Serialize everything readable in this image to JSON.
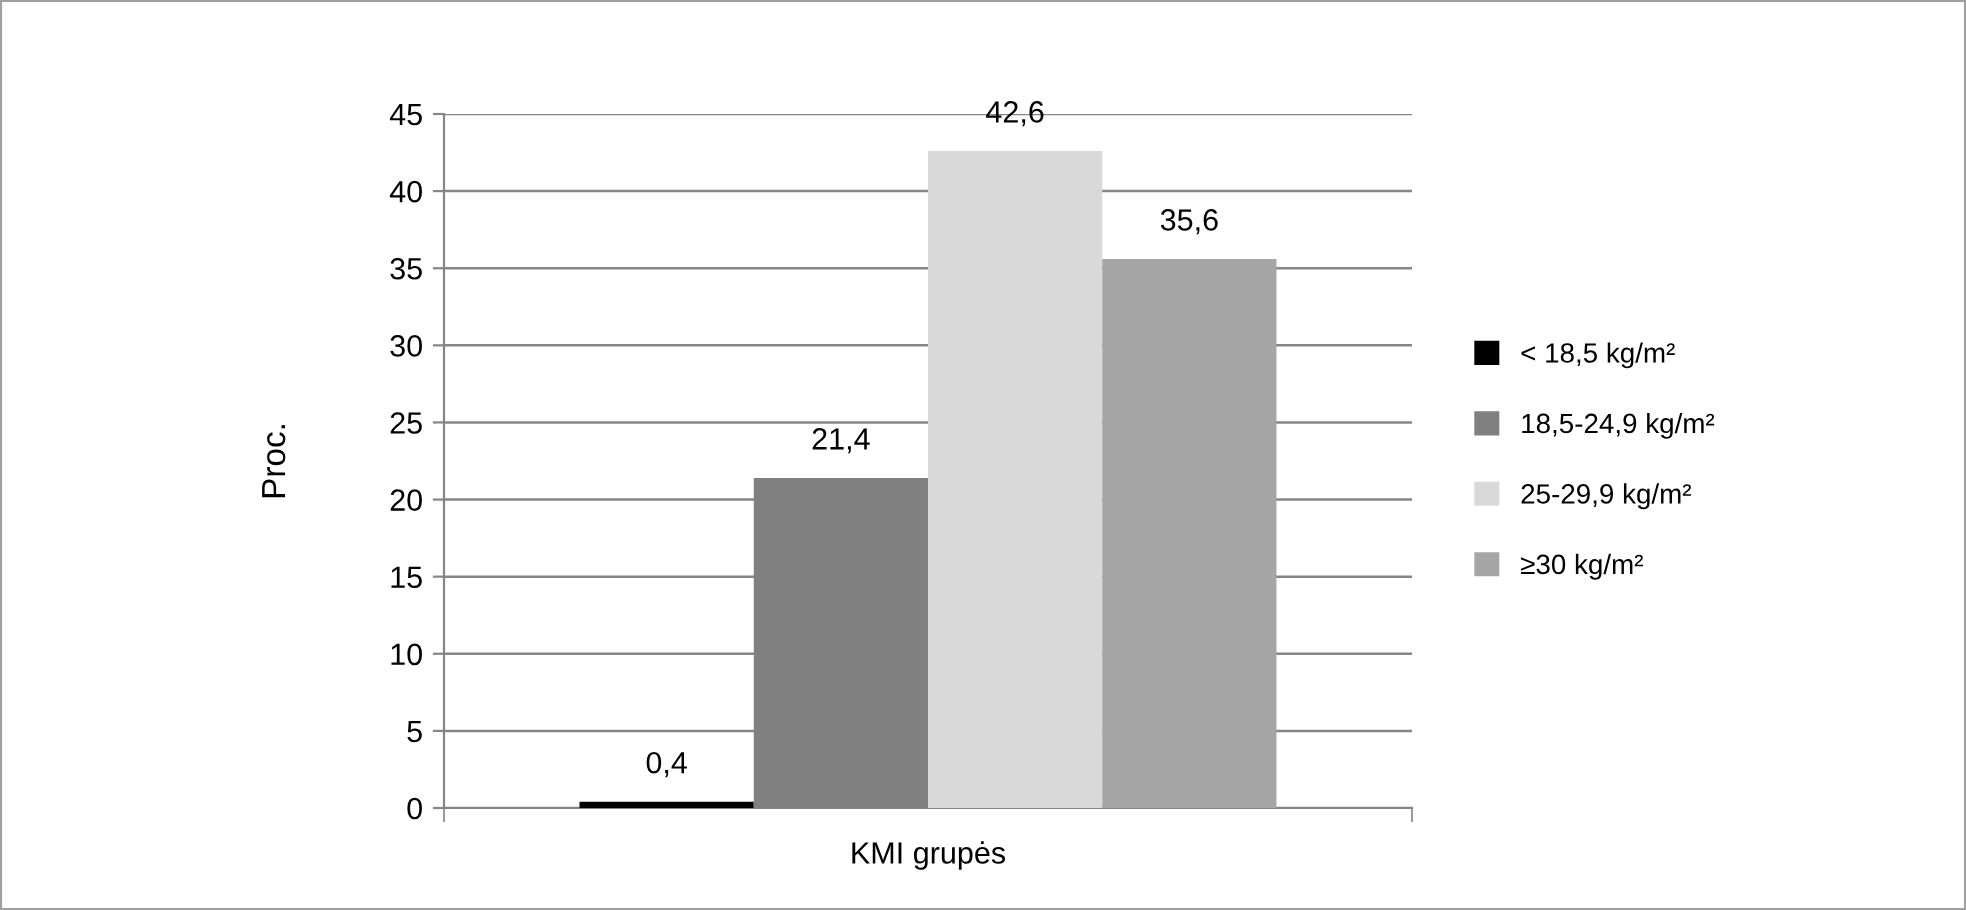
{
  "chart_data": {
    "type": "bar",
    "ylabel": "Proc.",
    "categories": [
      "KMI grupės"
    ],
    "series": [
      {
        "name": "< 18,5 kg/m²",
        "color": "#000000",
        "values": [
          0.4
        ],
        "value_labels": [
          "0,4"
        ]
      },
      {
        "name": "18,5-24,9 kg/m²",
        "color": "#808080",
        "values": [
          21.4
        ],
        "value_labels": [
          "21,4"
        ]
      },
      {
        "name": "25-29,9 kg/m²",
        "color": "#d9d9d9",
        "values": [
          42.6
        ],
        "value_labels": [
          "42,6"
        ]
      },
      {
        "name": "≥30 kg/m²",
        "color": "#a6a6a6",
        "values": [
          35.6
        ],
        "value_labels": [
          "35,6"
        ]
      }
    ],
    "ylim": [
      0,
      45
    ],
    "yticks": [
      0,
      5,
      10,
      15,
      20,
      25,
      30,
      35,
      40,
      45
    ],
    "grid": "y",
    "legend": "right"
  }
}
